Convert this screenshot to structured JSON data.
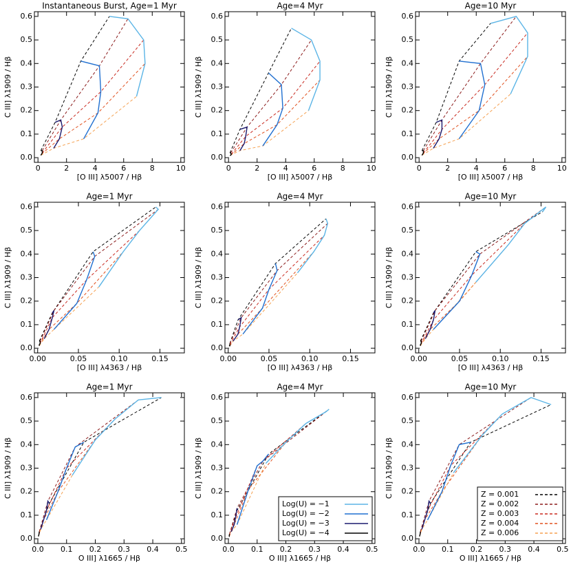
{
  "legends": {
    "u": [
      {
        "name": "Log(U) = −1",
        "color": "#5ab4e6"
      },
      {
        "name": "Log(U) = −2",
        "color": "#1f6fd0"
      },
      {
        "name": "Log(U) = −3",
        "color": "#1a1a6e"
      },
      {
        "name": "Log(U) = −4",
        "color": "#000000"
      }
    ],
    "z": [
      {
        "name": "Z = 0.001",
        "color": "#000000"
      },
      {
        "name": "Z = 0.002",
        "color": "#8b1a1a"
      },
      {
        "name": "Z = 0.003",
        "color": "#c8281e"
      },
      {
        "name": "Z = 0.004",
        "color": "#e0501e"
      },
      {
        "name": "Z = 0.006",
        "color": "#f5a050"
      }
    ]
  },
  "chart_data": [
    {
      "type": "line",
      "title": "Instantaneous Burst, Age=1 Myr",
      "xlabel": "[O III] λ5007 / Hβ",
      "ylabel": "C III] λ1909 / Hβ",
      "xlim": [
        -0.25,
        10.25
      ],
      "ylim": [
        -0.02,
        0.62
      ],
      "xticks": [
        0,
        2,
        4,
        6,
        8,
        10
      ],
      "yticks": [
        {
          "value": 0,
          "label": "0.0"
        },
        0.1,
        0.2,
        0.3,
        0.4,
        0.5,
        0.6
      ],
      "series": [
        {
          "x": [
            5.0,
            6.3,
            7.4,
            7.5,
            6.9
          ],
          "values": [
            0.6,
            0.59,
            0.5,
            0.4,
            0.26
          ]
        },
        {
          "x": [
            3.0,
            4.3,
            4.4,
            4.2,
            3.2
          ],
          "values": [
            0.41,
            0.39,
            0.28,
            0.19,
            0.08
          ]
        },
        {
          "x": [
            1.2,
            1.6,
            1.7,
            1.5,
            1.1
          ],
          "values": [
            0.15,
            0.16,
            0.13,
            0.08,
            0.04
          ]
        },
        {
          "x": [
            0.2,
            0.3,
            0.3,
            0.25,
            0.2
          ],
          "values": [
            0.03,
            0.03,
            0.02,
            0.015,
            0.01
          ]
        }
      ]
    },
    {
      "type": "line",
      "title": "Age=4 Myr",
      "xlabel": "[O III] λ5007 / Hβ",
      "ylabel": "C III] λ1909 / Hβ",
      "xlim": [
        -0.25,
        10.25
      ],
      "ylim": [
        -0.02,
        0.62
      ],
      "xticks": [
        0,
        2,
        4,
        6,
        8,
        10
      ],
      "yticks": [
        {
          "value": 0,
          "label": "0.0"
        },
        0.1,
        0.2,
        0.3,
        0.4,
        0.5,
        0.6
      ],
      "series": [
        {
          "x": [
            4.4,
            5.8,
            6.4,
            6.4,
            5.6
          ],
          "values": [
            0.55,
            0.5,
            0.41,
            0.33,
            0.2
          ]
        },
        {
          "x": [
            2.8,
            3.7,
            3.8,
            3.4,
            2.4
          ],
          "values": [
            0.36,
            0.31,
            0.21,
            0.14,
            0.05
          ]
        },
        {
          "x": [
            0.8,
            1.3,
            1.2,
            1.1,
            0.8
          ],
          "values": [
            0.12,
            0.13,
            0.09,
            0.06,
            0.03
          ]
        },
        {
          "x": [
            0.1,
            0.15,
            0.2,
            0.15,
            0.1
          ],
          "values": [
            0.02,
            0.02,
            0.015,
            0.01,
            0.01
          ]
        }
      ]
    },
    {
      "type": "line",
      "title": "Age=10 Myr",
      "xlabel": "[O III] λ5007 / Hβ",
      "ylabel": "C III] λ1909 / Hβ",
      "xlim": [
        -0.25,
        10.25
      ],
      "ylim": [
        -0.02,
        0.62
      ],
      "xticks": [
        0,
        2,
        4,
        6,
        8,
        10
      ],
      "yticks": [
        {
          "value": 0,
          "label": "0.0"
        },
        0.1,
        0.2,
        0.3,
        0.4,
        0.5,
        0.6
      ],
      "series": [
        {
          "x": [
            5.0,
            6.8,
            7.6,
            7.6,
            6.4
          ],
          "values": [
            0.57,
            0.6,
            0.53,
            0.43,
            0.27
          ]
        },
        {
          "x": [
            2.8,
            4.3,
            4.6,
            4.2,
            2.8
          ],
          "values": [
            0.41,
            0.4,
            0.31,
            0.2,
            0.08
          ]
        },
        {
          "x": [
            1.2,
            1.6,
            1.6,
            1.4,
            1.0
          ],
          "values": [
            0.15,
            0.16,
            0.12,
            0.08,
            0.04
          ]
        },
        {
          "x": [
            0.2,
            0.3,
            0.3,
            0.25,
            0.2
          ],
          "values": [
            0.03,
            0.03,
            0.02,
            0.015,
            0.01
          ]
        }
      ]
    },
    {
      "type": "line",
      "title": "Age=1 Myr",
      "xlabel": "[O III] λ4363 / Hβ",
      "ylabel": "C III] λ1909 / Hβ",
      "xlim": [
        -0.004,
        0.18
      ],
      "ylim": [
        -0.02,
        0.62
      ],
      "xticks": [
        {
          "value": 0,
          "label": "0.00"
        },
        0.05,
        {
          "value": 0.1,
          "label": "0.10"
        },
        0.15
      ],
      "yticks": [
        {
          "value": 0,
          "label": "0.0"
        },
        0.1,
        0.2,
        0.3,
        0.4,
        0.5,
        0.6
      ],
      "series": [
        {
          "x": [
            0.145,
            0.148,
            0.125,
            0.105,
            0.075
          ],
          "values": [
            0.6,
            0.59,
            0.5,
            0.41,
            0.26
          ]
        },
        {
          "x": [
            0.068,
            0.07,
            0.06,
            0.048,
            0.02
          ],
          "values": [
            0.41,
            0.39,
            0.29,
            0.19,
            0.08
          ]
        },
        {
          "x": [
            0.018,
            0.02,
            0.018,
            0.014,
            0.008
          ],
          "values": [
            0.15,
            0.16,
            0.13,
            0.08,
            0.04
          ]
        },
        {
          "x": [
            0.002,
            0.003,
            0.003,
            0.002,
            0.002
          ],
          "values": [
            0.03,
            0.03,
            0.02,
            0.015,
            0.01
          ]
        }
      ]
    },
    {
      "type": "line",
      "title": "Age=4 Myr",
      "xlabel": "[O III] λ4363 / Hβ",
      "ylabel": "C III] λ1909 / Hβ",
      "xlim": [
        -0.004,
        0.18
      ],
      "ylim": [
        -0.02,
        0.62
      ],
      "xticks": [
        {
          "value": 0,
          "label": "0.00"
        },
        0.05,
        {
          "value": 0.1,
          "label": "0.10"
        },
        0.15
      ],
      "yticks": [
        {
          "value": 0,
          "label": "0.0"
        },
        0.1,
        0.2,
        0.3,
        0.4,
        0.5,
        0.6
      ],
      "series": [
        {
          "x": [
            0.12,
            0.122,
            0.118,
            0.105,
            0.085
          ],
          "values": [
            0.55,
            0.53,
            0.48,
            0.41,
            0.32
          ]
        },
        {
          "x": [
            0.058,
            0.06,
            0.05,
            0.042,
            0.018
          ],
          "values": [
            0.36,
            0.33,
            0.25,
            0.17,
            0.06
          ]
        },
        {
          "x": [
            0.012,
            0.016,
            0.014,
            0.012,
            0.006
          ],
          "values": [
            0.12,
            0.13,
            0.09,
            0.06,
            0.03
          ]
        },
        {
          "x": [
            0.002,
            0.002,
            0.002,
            0.002,
            0.001
          ],
          "values": [
            0.02,
            0.02,
            0.015,
            0.01,
            0.01
          ]
        }
      ]
    },
    {
      "type": "line",
      "title": "Age=10 Myr",
      "xlabel": "[O III] λ4363 / Hβ",
      "ylabel": "C III] λ1909 / Hβ",
      "xlim": [
        -0.004,
        0.18
      ],
      "ylim": [
        -0.02,
        0.62
      ],
      "xticks": [
        {
          "value": 0,
          "label": "0.00"
        },
        0.05,
        {
          "value": 0.1,
          "label": "0.10"
        },
        0.15
      ],
      "yticks": [
        {
          "value": 0,
          "label": "0.0"
        },
        0.1,
        0.2,
        0.3,
        0.4,
        0.5,
        0.6
      ],
      "series": [
        {
          "x": [
            0.152,
            0.156,
            0.13,
            0.11,
            0.07
          ],
          "values": [
            0.58,
            0.6,
            0.53,
            0.44,
            0.28
          ]
        },
        {
          "x": [
            0.07,
            0.075,
            0.065,
            0.05,
            0.018
          ],
          "values": [
            0.41,
            0.4,
            0.31,
            0.2,
            0.08
          ]
        },
        {
          "x": [
            0.018,
            0.02,
            0.018,
            0.014,
            0.008
          ],
          "values": [
            0.15,
            0.16,
            0.12,
            0.08,
            0.04
          ]
        },
        {
          "x": [
            0.002,
            0.003,
            0.003,
            0.002,
            0.002
          ],
          "values": [
            0.03,
            0.03,
            0.02,
            0.015,
            0.01
          ]
        }
      ]
    },
    {
      "type": "line",
      "title": "Age=1 Myr",
      "xlabel": "O III] λ1665 / Hβ",
      "ylabel": "C III] λ1909 / Hβ",
      "xlim": [
        -0.012,
        0.51
      ],
      "ylim": [
        -0.02,
        0.62
      ],
      "xticks": [
        {
          "value": 0,
          "label": "0.0"
        },
        0.1,
        0.2,
        0.3,
        0.4,
        0.5
      ],
      "yticks": [
        {
          "value": 0,
          "label": "0.0"
        },
        0.1,
        0.2,
        0.3,
        0.4,
        0.5,
        0.6
      ],
      "series": [
        {
          "x": [
            0.43,
            0.35,
            0.27,
            0.2,
            0.12
          ],
          "values": [
            0.6,
            0.59,
            0.51,
            0.42,
            0.27
          ]
        },
        {
          "x": [
            0.16,
            0.13,
            0.1,
            0.07,
            0.03
          ],
          "values": [
            0.41,
            0.39,
            0.3,
            0.2,
            0.08
          ]
        },
        {
          "x": [
            0.04,
            0.035,
            0.03,
            0.02,
            0.01
          ],
          "values": [
            0.15,
            0.16,
            0.12,
            0.08,
            0.04
          ]
        },
        {
          "x": [
            0.005,
            0.005,
            0.004,
            0.003,
            0.002
          ],
          "values": [
            0.03,
            0.03,
            0.02,
            0.015,
            0.01
          ]
        }
      ]
    },
    {
      "type": "line",
      "title": "Age=4 Myr",
      "xlabel": "O III] λ1665 / Hβ",
      "ylabel": "C III] λ1909 / Hβ",
      "legend": "u",
      "legend_corner": "lower right",
      "xlim": [
        -0.012,
        0.51
      ],
      "ylim": [
        -0.02,
        0.62
      ],
      "xticks": [
        {
          "value": 0,
          "label": "0.0"
        },
        0.1,
        0.2,
        0.3,
        0.4,
        0.5
      ],
      "yticks": [
        {
          "value": 0,
          "label": "0.0"
        },
        0.1,
        0.2,
        0.3,
        0.4,
        0.5,
        0.6
      ],
      "series": [
        {
          "x": [
            0.35,
            0.34,
            0.27,
            0.2,
            0.13
          ],
          "values": [
            0.55,
            0.54,
            0.49,
            0.41,
            0.32
          ]
        },
        {
          "x": [
            0.14,
            0.12,
            0.1,
            0.07,
            0.03
          ],
          "values": [
            0.36,
            0.33,
            0.31,
            0.21,
            0.06
          ]
        },
        {
          "x": [
            0.03,
            0.03,
            0.025,
            0.02,
            0.01
          ],
          "values": [
            0.12,
            0.13,
            0.09,
            0.06,
            0.03
          ]
        },
        {
          "x": [
            0.004,
            0.004,
            0.003,
            0.003,
            0.002
          ],
          "values": [
            0.02,
            0.02,
            0.015,
            0.01,
            0.01
          ]
        }
      ]
    },
    {
      "type": "line",
      "title": "Age=10 Myr",
      "xlabel": "O III] λ1665 / Hβ",
      "ylabel": "C III] λ1909 / Hβ",
      "legend": "z",
      "legend_corner": "lower right",
      "xlim": [
        -0.012,
        0.51
      ],
      "ylim": [
        -0.02,
        0.62
      ],
      "xticks": [
        {
          "value": 0,
          "label": "0.0"
        },
        0.1,
        0.2,
        0.3,
        0.4,
        0.5
      ],
      "yticks": [
        {
          "value": 0,
          "label": "0.0"
        },
        0.1,
        0.2,
        0.3,
        0.4,
        0.5,
        0.6
      ],
      "series": [
        {
          "x": [
            0.46,
            0.39,
            0.29,
            0.22,
            0.12
          ],
          "values": [
            0.57,
            0.6,
            0.53,
            0.44,
            0.28
          ]
        },
        {
          "x": [
            0.18,
            0.14,
            0.11,
            0.08,
            0.03
          ],
          "values": [
            0.41,
            0.4,
            0.31,
            0.2,
            0.08
          ]
        },
        {
          "x": [
            0.04,
            0.035,
            0.03,
            0.02,
            0.01
          ],
          "values": [
            0.15,
            0.16,
            0.12,
            0.08,
            0.04
          ]
        },
        {
          "x": [
            0.005,
            0.005,
            0.004,
            0.003,
            0.002
          ],
          "values": [
            0.03,
            0.03,
            0.02,
            0.015,
            0.01
          ]
        }
      ]
    }
  ]
}
